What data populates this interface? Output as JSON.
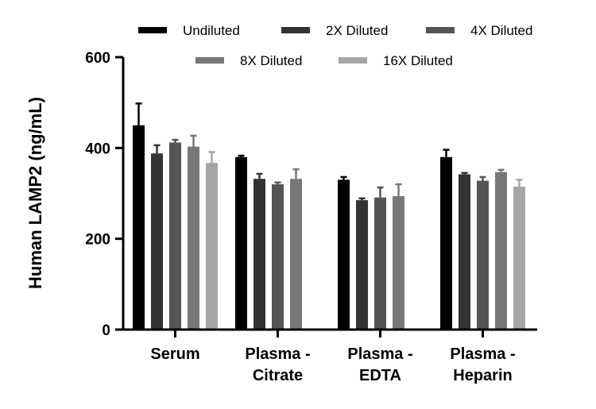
{
  "chart_data": {
    "type": "bar",
    "title": "",
    "xlabel": "",
    "ylabel": "Human LAMP2 (ng/mL)",
    "ylim": [
      0,
      600
    ],
    "yticks": [
      0,
      200,
      400,
      600
    ],
    "grid": false,
    "legend_position": "top",
    "categories": [
      [
        "Serum"
      ],
      [
        "Plasma -",
        "Citrate"
      ],
      [
        "Plasma -",
        "EDTA"
      ],
      [
        "Plasma -",
        "Heparin"
      ]
    ],
    "series": [
      {
        "name": "Undiluted",
        "color": "#000000",
        "values": [
          450,
          380,
          330,
          380
        ],
        "errors": [
          48,
          3,
          6,
          16
        ]
      },
      {
        "name": "2X Diluted",
        "color": "#333333",
        "values": [
          388,
          332,
          285,
          342
        ],
        "errors": [
          18,
          11,
          4,
          3
        ]
      },
      {
        "name": "4X Diluted",
        "color": "#555555",
        "values": [
          412,
          320,
          291,
          328
        ],
        "errors": [
          6,
          4,
          22,
          8
        ]
      },
      {
        "name": "8X Diluted",
        "color": "#777777",
        "values": [
          403,
          332,
          294,
          347
        ],
        "errors": [
          24,
          21,
          26,
          5
        ]
      },
      {
        "name": "16X Diluted",
        "color": "#a6a6a6",
        "values": [
          367,
          null,
          null,
          315
        ],
        "errors": [
          24,
          null,
          null,
          15
        ]
      }
    ]
  }
}
